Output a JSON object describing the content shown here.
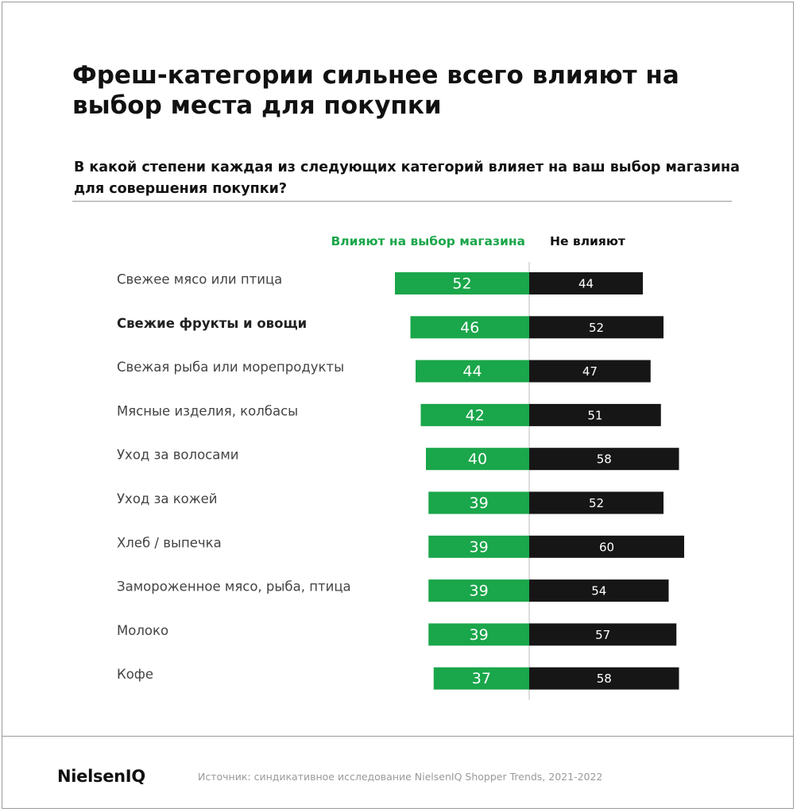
{
  "title": "Фреш-категории сильнее всего влияют на выбор места для покупки",
  "subtitle": "В какой степени каждая из следующих категорий влияет на ваш выбор магазина для совершения покупки?",
  "colors": {
    "influence": "#1aa64a",
    "no_influence": "#161616",
    "axis": "#bbbbbb"
  },
  "chart_data": {
    "type": "bar",
    "orientation": "horizontal-diverging",
    "categories": [
      "Свежее мясо или птица",
      "Свежие фрукты и овощи",
      "Свежая рыба или морепродукты",
      "Мясные изделия, колбасы",
      "Уход за волосами",
      "Уход за кожей",
      "Хлеб / выпечка",
      "Замороженное мясо, рыба, птица",
      "Молоко",
      "Кофе"
    ],
    "highlighted_category": "Свежие фрукты и овощи",
    "series": [
      {
        "name": "Влияют на выбор магазина",
        "color": "#1aa64a",
        "direction": "left",
        "values": [
          52,
          46,
          44,
          42,
          40,
          39,
          39,
          39,
          39,
          37
        ]
      },
      {
        "name": "Не влияют",
        "color": "#161616",
        "direction": "right",
        "values": [
          44,
          52,
          47,
          51,
          58,
          52,
          60,
          54,
          57,
          58
        ]
      }
    ],
    "legend_position": "top",
    "grid": false
  },
  "footer": {
    "logo": "NielsenIQ",
    "source": "Источник: синдикативное исследование NielsenIQ Shopper Trends, 2021-2022"
  }
}
